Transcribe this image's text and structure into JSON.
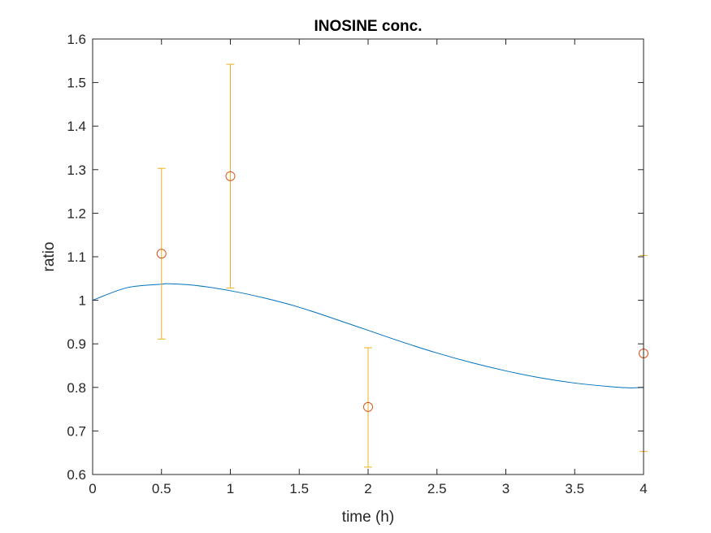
{
  "chart_data": {
    "type": "scatter",
    "title": "INOSINE conc.",
    "xlabel": "time (h)",
    "ylabel": "ratio",
    "xlim": [
      0,
      4
    ],
    "ylim": [
      0.6,
      1.6
    ],
    "xticks": [
      0,
      0.5,
      1,
      1.5,
      2,
      2.5,
      3,
      3.5,
      4
    ],
    "xtick_labels": [
      "0",
      "0.5",
      "1",
      "1.5",
      "2",
      "2.5",
      "3",
      "3.5",
      "4"
    ],
    "yticks": [
      0.6,
      0.7,
      0.8,
      0.9,
      1.0,
      1.1,
      1.2,
      1.3,
      1.4,
      1.5,
      1.6
    ],
    "ytick_labels": [
      "0.6",
      "0.7",
      "0.8",
      "0.9",
      "1",
      "1.1",
      "1.2",
      "1.3",
      "1.4",
      "1.5",
      "1.6"
    ],
    "grid": false,
    "series": [
      {
        "kind": "line",
        "color": "#0072BD",
        "x": [
          0,
          0.25,
          0.5,
          0.55,
          0.75,
          1.0,
          1.25,
          1.5,
          1.75,
          2.0,
          2.25,
          2.5,
          2.75,
          3.0,
          3.25,
          3.5,
          3.75,
          3.9,
          4.0
        ],
        "y": [
          1.0,
          1.029,
          1.037,
          1.038,
          1.034,
          1.022,
          1.005,
          0.984,
          0.958,
          0.931,
          0.904,
          0.879,
          0.857,
          0.838,
          0.822,
          0.81,
          0.802,
          0.799,
          0.8
        ]
      },
      {
        "kind": "errorbar",
        "marker": "circle",
        "marker_color": "#D95319",
        "errorbar_color": "#EDB120",
        "x": [
          0.5,
          1.0,
          2.0,
          4.0
        ],
        "y": [
          1.107,
          1.285,
          0.755,
          0.878
        ],
        "lower": [
          0.911,
          1.028,
          0.617,
          0.653
        ],
        "upper": [
          1.303,
          1.542,
          0.891,
          1.103
        ]
      }
    ]
  }
}
